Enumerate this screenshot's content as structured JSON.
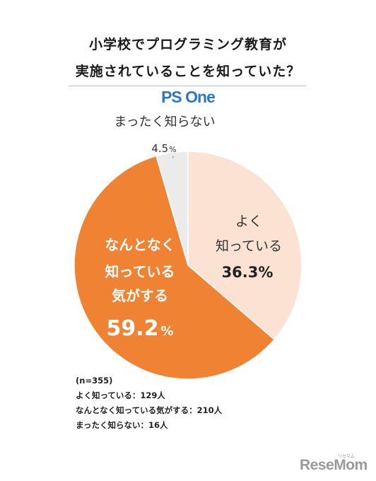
{
  "chart_data": {
    "type": "pie",
    "title_line1": "小学校でプログラミング教育が",
    "title_line2": "実施されていることを知っていた？",
    "brand": "PS One",
    "slices": [
      {
        "label_lines": [
          "よく",
          "知っている"
        ],
        "value_text": "36.3%",
        "value": 36.3,
        "color": "#fbe2d2"
      },
      {
        "label_lines": [
          "なんとなく",
          "知っている",
          "気がする"
        ],
        "value_num": "59.2",
        "value_unit": "%",
        "value": 59.2,
        "color": "#ef8333"
      },
      {
        "label_lines": [
          "まったく知らない"
        ],
        "value_num": "4.5",
        "value_unit": "%",
        "value": 4.5,
        "color": "#ebebeb"
      }
    ],
    "notes": [
      "(n=355)",
      "よく知っている：129人",
      "なんとなく知っている気がする：210人",
      "まったく知らない：16人"
    ]
  },
  "logo": {
    "text": "ReseMom",
    "sub": "リセマム"
  }
}
